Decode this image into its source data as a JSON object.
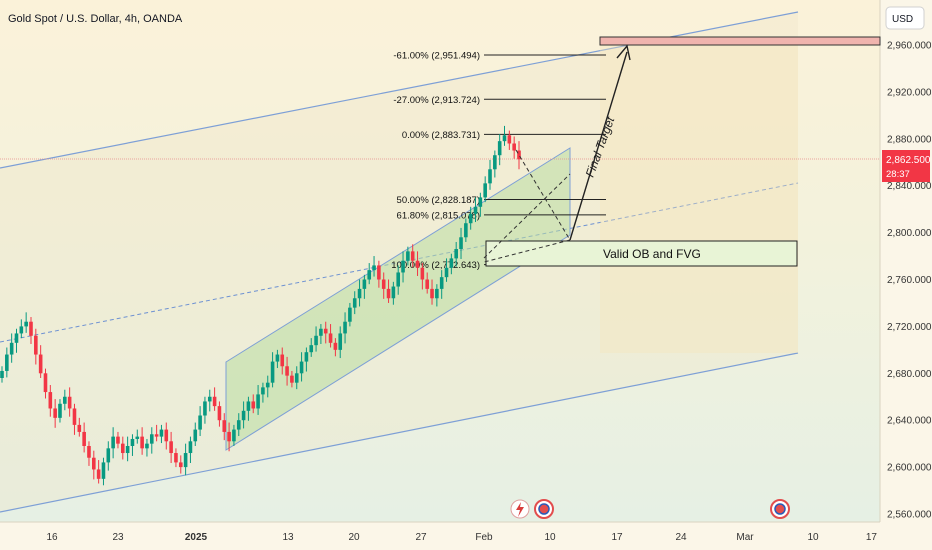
{
  "chart_data": {
    "type": "candlestick",
    "title": "Gold Spot / U.S. Dollar, 4h, OANDA",
    "currency": "USD",
    "ylim": [
      2554,
      2994
    ],
    "y_ticks": [
      {
        "value": 2960,
        "label": "2,960.000"
      },
      {
        "value": 2920,
        "label": "2,920.000"
      },
      {
        "value": 2880,
        "label": "2,880.000"
      },
      {
        "value": 2840,
        "label": "2,840.000"
      },
      {
        "value": 2800,
        "label": "2,800.000"
      },
      {
        "value": 2760,
        "label": "2,760.000"
      },
      {
        "value": 2720,
        "label": "2,720.000"
      },
      {
        "value": 2680,
        "label": "2,680.000"
      },
      {
        "value": 2640,
        "label": "2,640.000"
      },
      {
        "value": 2600,
        "label": "2,600.000"
      },
      {
        "value": 2560,
        "label": "2,560.000"
      }
    ],
    "x_ticks": [
      "16",
      "23",
      "2025",
      "13",
      "20",
      "27",
      "Feb",
      "10",
      "17",
      "24",
      "Mar",
      "10",
      "17"
    ],
    "current_price": {
      "label": "2,862.500",
      "countdown": "28:37",
      "value": 2862.5
    },
    "fib_levels": [
      {
        "label": "-61.00% (2,951.494)",
        "value": 2951.494
      },
      {
        "label": "-27.00% (2,913.724)",
        "value": 2913.724
      },
      {
        "label": "0.00% (2,883.731)",
        "value": 2883.731
      },
      {
        "label": "50.00% (2,828.187)",
        "value": 2828.187
      },
      {
        "label": "61.80% (2,815.078)",
        "value": 2815.078
      },
      {
        "label": "100.00% (2,772.643)",
        "value": 2772.643
      }
    ],
    "annotations": {
      "zone_label": "Valid OB and FVG",
      "target_label": "Final Target",
      "zone_range": [
        2770,
        2792
      ],
      "target_range": [
        2964,
        2970
      ]
    },
    "candles_close": [
      2682,
      2696,
      2706,
      2714,
      2720,
      2724,
      2712,
      2696,
      2680,
      2664,
      2650,
      2642,
      2654,
      2660,
      2650,
      2636,
      2630,
      2618,
      2608,
      2598,
      2590,
      2604,
      2616,
      2626,
      2620,
      2612,
      2618,
      2624,
      2626,
      2616,
      2620,
      2628,
      2626,
      2632,
      2622,
      2612,
      2604,
      2600,
      2612,
      2622,
      2632,
      2644,
      2656,
      2660,
      2652,
      2640,
      2630,
      2622,
      2632,
      2640,
      2648,
      2656,
      2650,
      2662,
      2668,
      2672,
      2690,
      2696,
      2686,
      2678,
      2672,
      2680,
      2690,
      2698,
      2704,
      2712,
      2718,
      2714,
      2706,
      2700,
      2714,
      2724,
      2736,
      2744,
      2752,
      2760,
      2768,
      2772,
      2760,
      2752,
      2744,
      2754,
      2766,
      2776,
      2784,
      2776,
      2770,
      2760,
      2752,
      2744,
      2752,
      2762,
      2770,
      2778,
      2786,
      2796,
      2808,
      2816,
      2822,
      2830,
      2842,
      2854,
      2866,
      2878,
      2883,
      2876,
      2870,
      2862.5
    ]
  }
}
